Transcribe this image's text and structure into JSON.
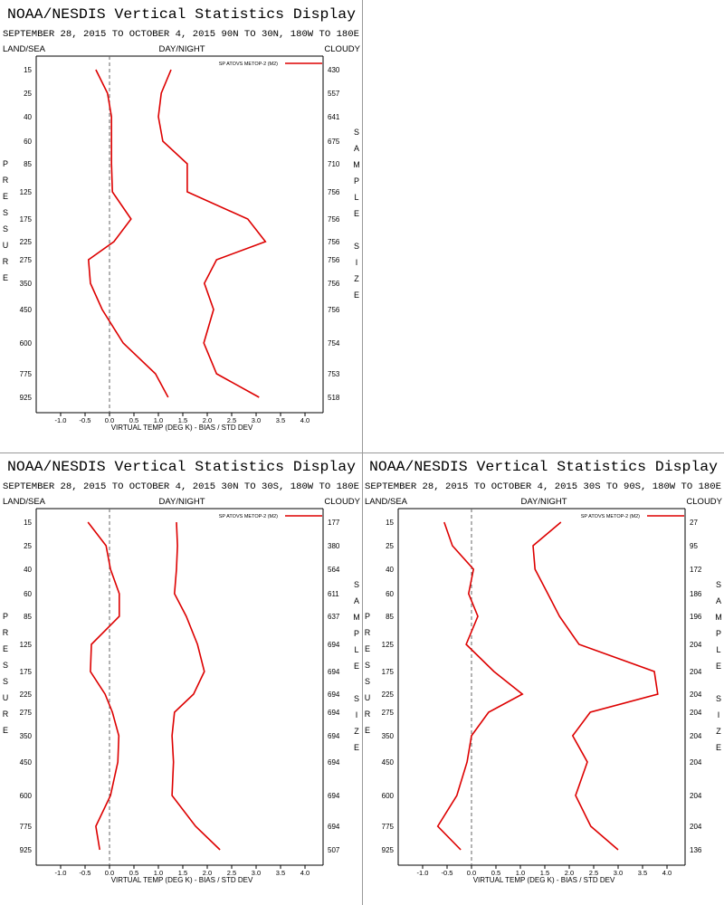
{
  "chart_data": [
    {
      "type": "line",
      "title": "NOAA/NESDIS Vertical Statistics Display",
      "subtitle": "SEPTEMBER 28, 2015 TO OCTOBER 4, 2015 90N TO 30N, 180W TO 180E",
      "land_sea_label": "LAND/SEA",
      "day_night_label": "DAY/NIGHT",
      "cloudy_label": "CLOUDY",
      "y_label": "PRESSURE",
      "y2_label": "SAMPLE SIZE",
      "x_label": "VIRTUAL TEMP (DEG K) - BIAS / STD DEV",
      "categories": [
        15,
        25,
        40,
        60,
        85,
        125,
        175,
        225,
        275,
        350,
        450,
        600,
        775,
        925
      ],
      "series": [
        {
          "name": "SP ATOVS METOP-2 (M2)",
          "color": "#dd0000",
          "values": [
            -0.28,
            -0.04,
            0.04,
            0.04,
            0.04,
            0.06,
            0.44,
            0.09,
            -0.43,
            -0.39,
            -0.15,
            0.28,
            0.94,
            1.2
          ],
          "std_dev": [
            1.26,
            1.06,
            1.0,
            1.09,
            1.59,
            1.59,
            2.83,
            3.19,
            2.19,
            1.94,
            2.13,
            1.93,
            2.19,
            3.06
          ]
        }
      ],
      "sample_size": [
        430,
        557,
        641,
        675,
        710,
        756,
        756,
        756,
        756,
        756,
        756,
        754,
        753,
        518
      ],
      "xlim": [
        -1.5,
        4.37
      ],
      "xticks": [
        {
          "value": -1,
          "label": "-1.0"
        },
        -0.5,
        {
          "value": 0,
          "label": "0.0"
        },
        0.5,
        {
          "value": 1,
          "label": "1.0"
        },
        1.5,
        {
          "value": 2,
          "label": "2.0"
        },
        2.5,
        {
          "value": 3,
          "label": "3.0"
        },
        3.5,
        {
          "value": 4,
          "label": "4.0"
        }
      ],
      "legend": "upper right"
    },
    {
      "type": "line",
      "title": "NOAA/NESDIS Vertical Statistics Display",
      "subtitle": "SEPTEMBER 28, 2015 TO OCTOBER 4, 2015 30N TO 30S, 180W TO 180E",
      "land_sea_label": "LAND/SEA",
      "day_night_label": "DAY/NIGHT",
      "cloudy_label": "CLOUDY",
      "y_label": "PRESSURE",
      "y2_label": "SAMPLE SIZE",
      "x_label": "VIRTUAL TEMP (DEG K) - BIAS / STD DEV",
      "categories": [
        15,
        25,
        40,
        60,
        85,
        125,
        175,
        225,
        275,
        350,
        450,
        600,
        775,
        925
      ],
      "series": [
        {
          "name": "SP ATOVS METOP-2 (M2)",
          "color": "#dd0000",
          "values": [
            -0.44,
            -0.07,
            0.02,
            0.2,
            0.2,
            -0.37,
            -0.39,
            -0.09,
            0.06,
            0.19,
            0.17,
            0.02,
            -0.28,
            -0.2
          ],
          "std_dev": [
            1.37,
            1.39,
            1.37,
            1.33,
            1.57,
            1.8,
            1.94,
            1.72,
            1.33,
            1.28,
            1.31,
            1.28,
            1.76,
            2.26
          ]
        }
      ],
      "sample_size": [
        177,
        380,
        564,
        611,
        637,
        694,
        694,
        694,
        694,
        694,
        694,
        694,
        694,
        507
      ],
      "xlim": [
        -1.5,
        4.37
      ],
      "xticks": [
        {
          "value": -1,
          "label": "-1.0"
        },
        -0.5,
        {
          "value": 0,
          "label": "0.0"
        },
        0.5,
        {
          "value": 1,
          "label": "1.0"
        },
        1.5,
        {
          "value": 2,
          "label": "2.0"
        },
        2.5,
        {
          "value": 3,
          "label": "3.0"
        },
        3.5,
        {
          "value": 4,
          "label": "4.0"
        }
      ],
      "legend": "upper right"
    },
    {
      "type": "line",
      "title": "NOAA/NESDIS Vertical Statistics Display",
      "subtitle": "SEPTEMBER 28, 2015 TO OCTOBER 4, 2015 30S TO 90S, 180W TO 180E",
      "land_sea_label": "LAND/SEA",
      "day_night_label": "DAY/NIGHT",
      "cloudy_label": "CLOUDY",
      "y_label": "PRESSURE",
      "y2_label": "SAMPLE SIZE",
      "x_label": "VIRTUAL TEMP (DEG K) - BIAS / STD DEV",
      "categories": [
        15,
        25,
        40,
        60,
        85,
        125,
        175,
        225,
        275,
        350,
        450,
        600,
        775,
        925
      ],
      "series": [
        {
          "name": "SP ATOVS METOP-2 (M2)",
          "color": "#dd0000",
          "values": [
            -0.56,
            -0.39,
            0.04,
            -0.06,
            0.13,
            -0.11,
            0.46,
            1.04,
            0.35,
            0.0,
            -0.09,
            -0.3,
            -0.69,
            -0.22
          ],
          "std_dev": [
            1.83,
            1.26,
            1.3,
            1.56,
            1.8,
            2.2,
            3.74,
            3.81,
            2.43,
            2.07,
            2.37,
            2.13,
            2.44,
            3.0
          ]
        }
      ],
      "sample_size": [
        27,
        95,
        172,
        186,
        196,
        204,
        204,
        204,
        204,
        204,
        204,
        204,
        204,
        136
      ],
      "xlim": [
        -1.5,
        4.37
      ],
      "xticks": [
        {
          "value": -1,
          "label": "-1.0"
        },
        -0.5,
        {
          "value": 0,
          "label": "0.0"
        },
        0.5,
        {
          "value": 1,
          "label": "1.0"
        },
        1.5,
        {
          "value": 2,
          "label": "2.0"
        },
        2.5,
        {
          "value": 3,
          "label": "3.0"
        },
        3.5,
        {
          "value": 4,
          "label": "4.0"
        }
      ],
      "legend": "upper right"
    }
  ]
}
